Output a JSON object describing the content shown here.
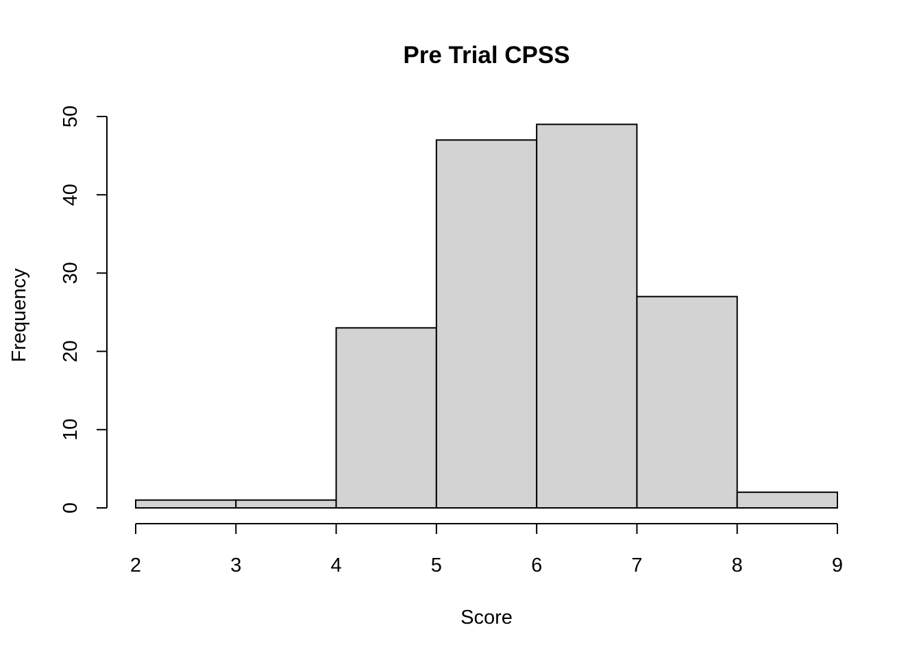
{
  "chart_data": {
    "type": "bar",
    "title": "Pre Trial CPSS",
    "xlabel": "Score",
    "ylabel": "Frequency",
    "bins": [
      {
        "start": 2,
        "end": 3,
        "value": 1
      },
      {
        "start": 3,
        "end": 4,
        "value": 1
      },
      {
        "start": 4,
        "end": 5,
        "value": 23
      },
      {
        "start": 5,
        "end": 6,
        "value": 47
      },
      {
        "start": 6,
        "end": 7,
        "value": 49
      },
      {
        "start": 7,
        "end": 8,
        "value": 27
      },
      {
        "start": 8,
        "end": 9,
        "value": 2
      }
    ],
    "xlim": [
      2,
      9
    ],
    "ylim": [
      0,
      50
    ],
    "x_ticks": [
      "2",
      "3",
      "4",
      "5",
      "6",
      "7",
      "8",
      "9"
    ],
    "y_ticks": [
      "0",
      "10",
      "20",
      "30",
      "40",
      "50"
    ],
    "bar_fill": "#d3d3d3",
    "bar_stroke": "#000000",
    "grid": false
  }
}
